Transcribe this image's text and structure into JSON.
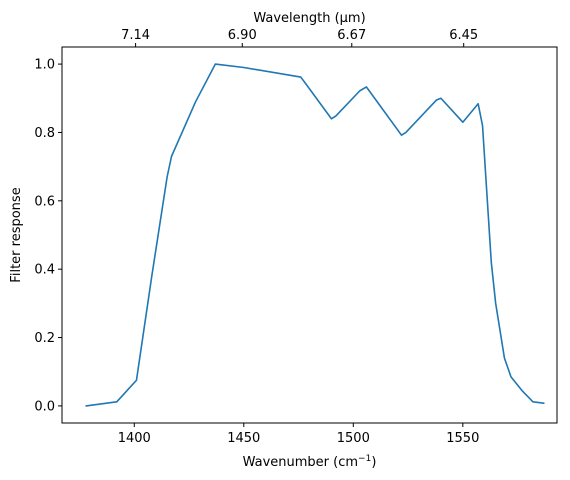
{
  "chart_data": {
    "type": "line",
    "xlabel_prefix": "Wavenumber (cm",
    "xlabel_sup": "−1",
    "xlabel_suffix": ")",
    "ylabel": "Filter response",
    "top_xlabel": "Wavelength (μm)",
    "xlim": [
      1367,
      1593
    ],
    "ylim": [
      -0.05,
      1.05
    ],
    "x_ticks": [
      1400,
      1450,
      1500,
      1550
    ],
    "x_tick_labels": [
      "1400",
      "1450",
      "1500",
      "1550"
    ],
    "y_ticks": [
      0.0,
      0.2,
      0.4,
      0.6,
      0.8,
      1.0
    ],
    "y_tick_labels": [
      "0.0",
      "0.2",
      "0.4",
      "0.6",
      "0.8",
      "1.0"
    ],
    "top_ticks": [
      1400.6,
      1449.3,
      1499.3,
      1550.4
    ],
    "top_tick_labels": [
      "7.14",
      "6.90",
      "6.67",
      "6.45"
    ],
    "line_color": "#1f77b4",
    "series": [
      {
        "x": [
          1378,
          1392,
          1401,
          1408,
          1415,
          1417,
          1428,
          1437,
          1450,
          1476,
          1478,
          1490,
          1492,
          1503,
          1506,
          1522,
          1524,
          1538,
          1540,
          1550,
          1557,
          1559,
          1563,
          1565,
          1569,
          1572,
          1577,
          1582,
          1587
        ],
        "y": [
          0.0,
          0.012,
          0.075,
          0.38,
          0.67,
          0.73,
          0.89,
          1.0,
          0.99,
          0.962,
          0.945,
          0.84,
          0.848,
          0.922,
          0.933,
          0.792,
          0.8,
          0.895,
          0.9,
          0.83,
          0.884,
          0.82,
          0.42,
          0.3,
          0.14,
          0.085,
          0.045,
          0.012,
          0.008
        ]
      }
    ]
  }
}
